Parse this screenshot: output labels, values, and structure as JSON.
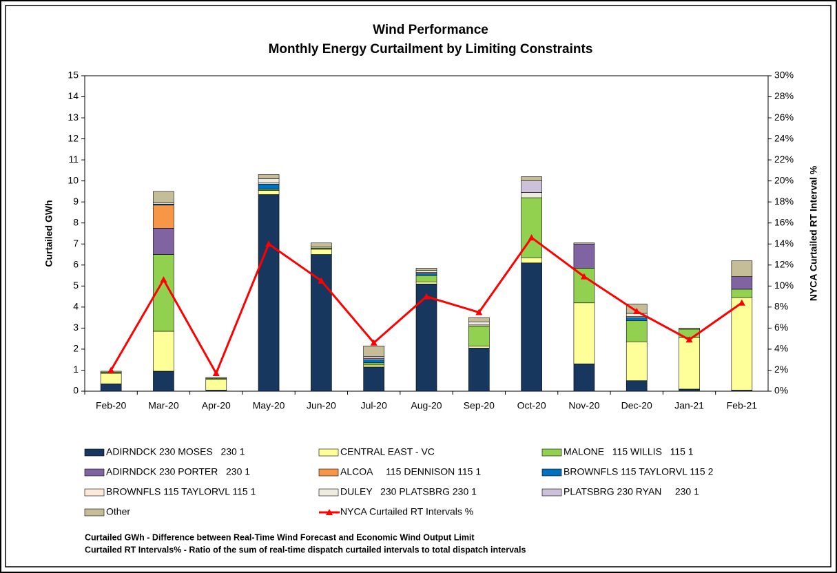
{
  "chart_data": {
    "type": "bar",
    "title": "Wind Performance",
    "subtitle": "Monthly Energy Curtailment by Limiting Constraints",
    "y_label": "Curtailed GWh",
    "y2_label": "NYCA Curtailed RT Interval %",
    "categories": [
      "Feb-20",
      "Mar-20",
      "Apr-20",
      "May-20",
      "Jun-20",
      "Jul-20",
      "Aug-20",
      "Sep-20",
      "Oct-20",
      "Nov-20",
      "Dec-20",
      "Jan-21",
      "Feb-21"
    ],
    "stacked": true,
    "series": [
      {
        "name": "ADIRNDCK 230 MOSES   230 1",
        "color": "#17375e",
        "values": [
          0.35,
          0.95,
          0.05,
          9.35,
          6.5,
          1.15,
          5.1,
          2.05,
          6.1,
          1.3,
          0.5,
          0.1,
          0.05
        ]
      },
      {
        "name": "CENTRAL EAST - VC",
        "color": "#ffff99",
        "values": [
          0.5,
          1.9,
          0.5,
          0.2,
          0.25,
          0.1,
          0.1,
          0.1,
          0.25,
          2.9,
          1.85,
          2.45,
          4.4
        ]
      },
      {
        "name": "MALONE   115 WILLIS   115 1",
        "color": "#92d050",
        "values": [
          0.05,
          3.65,
          0.05,
          0.05,
          0.05,
          0.1,
          0.3,
          0.95,
          2.85,
          1.65,
          1.0,
          0.4,
          0.4
        ]
      },
      {
        "name": "ADIRNDCK 230 PORTER   230 1",
        "color": "#8064a2",
        "values": [
          0,
          1.25,
          0,
          0,
          0,
          0,
          0,
          0,
          0,
          1.15,
          0,
          0,
          0.6
        ]
      },
      {
        "name": "ALCOA     115 DENNISON 115 1",
        "color": "#f79646",
        "values": [
          0,
          1.1,
          0,
          0,
          0,
          0,
          0,
          0,
          0,
          0,
          0,
          0,
          0
        ]
      },
      {
        "name": "BROWNFLS 115 TAYLORVL 115 2",
        "color": "#0070c0",
        "values": [
          0,
          0.05,
          0,
          0.25,
          0,
          0.15,
          0.1,
          0,
          0,
          0,
          0.15,
          0,
          0
        ]
      },
      {
        "name": "BROWNFLS 115 TAYLORVL 115 1",
        "color": "#fde9d9",
        "values": [
          0,
          0.05,
          0,
          0.05,
          0,
          0.05,
          0.05,
          0.05,
          0,
          0,
          0.05,
          0,
          0
        ]
      },
      {
        "name": "DULEY   230 PLATSBRG 230 1",
        "color": "#eeece1",
        "values": [
          0,
          0,
          0,
          0.2,
          0.05,
          0,
          0.1,
          0.15,
          0.25,
          0,
          0.15,
          0,
          0
        ]
      },
      {
        "name": "PLATSBRG 230 RYAN     230 1",
        "color": "#ccc0da",
        "values": [
          0,
          0,
          0,
          0,
          0,
          0.1,
          0,
          0,
          0.55,
          0,
          0,
          0,
          0
        ]
      },
      {
        "name": "Other",
        "color": "#c4bd97",
        "values": [
          0.05,
          0.55,
          0.05,
          0.2,
          0.2,
          0.5,
          0.1,
          0.2,
          0.2,
          0.05,
          0.45,
          0.05,
          0.75
        ]
      },
      {
        "name": "NYCA Curtailed RT Intervals %",
        "color": "#ff0000",
        "type": "line",
        "axis": "y2",
        "values": [
          2.0,
          10.6,
          1.7,
          14.0,
          10.5,
          4.6,
          9.0,
          7.5,
          14.6,
          10.9,
          7.6,
          4.9,
          8.4
        ]
      }
    ],
    "ylim": [
      0,
      15
    ],
    "yticks": [
      0,
      1,
      2,
      3,
      4,
      5,
      6,
      7,
      8,
      9,
      10,
      11,
      12,
      13,
      14,
      15
    ],
    "y2lim": [
      0,
      30
    ],
    "y2ticks": [
      {
        "value": 0,
        "label": "0%"
      },
      {
        "value": 2,
        "label": "2%"
      },
      {
        "value": 4,
        "label": "4%"
      },
      {
        "value": 6,
        "label": "6%"
      },
      {
        "value": 8,
        "label": "8%"
      },
      {
        "value": 10,
        "label": "10%"
      },
      {
        "value": 12,
        "label": "12%"
      },
      {
        "value": 14,
        "label": "14%"
      },
      {
        "value": 16,
        "label": "16%"
      },
      {
        "value": 18,
        "label": "18%"
      },
      {
        "value": 20,
        "label": "20%"
      },
      {
        "value": 22,
        "label": "22%"
      },
      {
        "value": 24,
        "label": "24%"
      },
      {
        "value": 26,
        "label": "26%"
      },
      {
        "value": 28,
        "label": "28%"
      },
      {
        "value": 30,
        "label": "30%"
      }
    ],
    "notes": [
      "Curtailed GWh - Difference between Real-Time Wind Forecast and Economic Wind Output Limit",
      "Curtailed RT Intervals% - Ratio of the sum of real-time dispatch curtailed intervals to total dispatch intervals"
    ]
  }
}
